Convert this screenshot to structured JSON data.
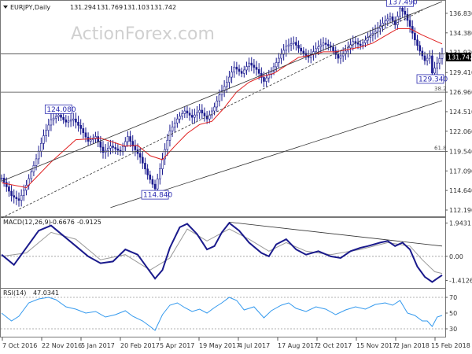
{
  "header": {
    "symbol": "EURJPY,Daily",
    "open": "131.294",
    "high": "131.769",
    "low": "131.103",
    "close": "131.742"
  },
  "watermark": "ActionForex.com",
  "current_price_label": "131.742",
  "colors": {
    "candle": "#1b1b8f",
    "ma": "#e02020",
    "channel": "#333333",
    "macd": "#1a1a8c",
    "signal": "#9a9a9a",
    "rsi": "#3399ee",
    "hline": "#444444",
    "label_border": "#2c2cb0"
  },
  "chart_data": [
    {
      "type": "candlestick",
      "title": "EURJPY,Daily",
      "yticks": [
        "136.830",
        "134.380",
        "131.930",
        "129.410",
        "126.960",
        "124.510",
        "122.060",
        "119.540",
        "117.090",
        "114.640",
        "112.190"
      ],
      "ylim": [
        111.5,
        138.3
      ],
      "xticks": [
        "7 Oct 2016",
        "22 Nov 2016",
        "5 Jan 2017",
        "20 Feb 2017",
        "5 Apr 2017",
        "19 May 2017",
        "4 Jul 2017",
        "17 Aug 2017",
        "2 Oct 2017",
        "15 Nov 2017",
        "2 Jan 2018",
        "15 Feb 2018"
      ],
      "price_path": [
        [
          0,
          116.2
        ],
        [
          8,
          114.0
        ],
        [
          14,
          113.4
        ],
        [
          20,
          115.3
        ],
        [
          28,
          118.6
        ],
        [
          34,
          121.5
        ],
        [
          40,
          123.5
        ],
        [
          46,
          124.1
        ],
        [
          52,
          123.2
        ],
        [
          58,
          123.6
        ],
        [
          64,
          122.4
        ],
        [
          70,
          120.8
        ],
        [
          76,
          121.4
        ],
        [
          82,
          119.4
        ],
        [
          88,
          120.2
        ],
        [
          96,
          119.5
        ],
        [
          102,
          121.4
        ],
        [
          106,
          120.2
        ],
        [
          112,
          118.8
        ],
        [
          118,
          116.6
        ],
        [
          124,
          114.84
        ],
        [
          130,
          118.6
        ],
        [
          136,
          122.1
        ],
        [
          142,
          123.6
        ],
        [
          148,
          124.6
        ],
        [
          154,
          123.8
        ],
        [
          160,
          124.7
        ],
        [
          166,
          123.6
        ],
        [
          172,
          125.1
        ],
        [
          176,
          126.6
        ],
        [
          182,
          128.2
        ],
        [
          188,
          130.1
        ],
        [
          194,
          129.3
        ],
        [
          200,
          130.6
        ],
        [
          206,
          129.8
        ],
        [
          212,
          128.3
        ],
        [
          218,
          129.6
        ],
        [
          224,
          131.2
        ],
        [
          230,
          132.7
        ],
        [
          236,
          133.2
        ],
        [
          242,
          132.1
        ],
        [
          248,
          131.3
        ],
        [
          254,
          132.4
        ],
        [
          260,
          133.1
        ],
        [
          266,
          132.6
        ],
        [
          272,
          131.2
        ],
        [
          278,
          132.1
        ],
        [
          284,
          133.3
        ],
        [
          290,
          132.8
        ],
        [
          296,
          133.8
        ],
        [
          302,
          134.6
        ],
        [
          308,
          135.6
        ],
        [
          314,
          136.4
        ],
        [
          318,
          135.4
        ],
        [
          322,
          137.49
        ],
        [
          326,
          136.7
        ],
        [
          330,
          135.2
        ],
        [
          334,
          133.5
        ],
        [
          338,
          132.1
        ],
        [
          342,
          130.9
        ],
        [
          346,
          131.5
        ],
        [
          348,
          129.34
        ],
        [
          352,
          130.6
        ],
        [
          356,
          131.742
        ]
      ],
      "ma_path": [
        [
          0,
          115.6
        ],
        [
          20,
          115.0
        ],
        [
          40,
          118.2
        ],
        [
          60,
          121.0
        ],
        [
          80,
          121.2
        ],
        [
          100,
          120.2
        ],
        [
          110,
          120.3
        ],
        [
          120,
          119.0
        ],
        [
          130,
          118.5
        ],
        [
          140,
          120.2
        ],
        [
          150,
          121.8
        ],
        [
          160,
          122.9
        ],
        [
          170,
          123.3
        ],
        [
          180,
          125.0
        ],
        [
          190,
          127.0
        ],
        [
          200,
          128.2
        ],
        [
          210,
          128.9
        ],
        [
          220,
          129.3
        ],
        [
          230,
          130.3
        ],
        [
          240,
          131.3
        ],
        [
          250,
          131.6
        ],
        [
          260,
          132.0
        ],
        [
          270,
          132.0
        ],
        [
          280,
          132.3
        ],
        [
          290,
          132.6
        ],
        [
          300,
          133.1
        ],
        [
          310,
          134.0
        ],
        [
          320,
          134.9
        ],
        [
          330,
          134.9
        ],
        [
          340,
          134.1
        ],
        [
          356,
          133.0
        ]
      ],
      "annotations": [
        {
          "text": "137.490",
          "x": 322,
          "y": 137.49,
          "position": "above"
        },
        {
          "text": "124.080",
          "x": 46,
          "y": 124.08,
          "position": "above"
        },
        {
          "text": "114.840",
          "x": 124,
          "y": 114.84,
          "position": "below"
        },
        {
          "text": "129.340",
          "x": 348,
          "y": 129.34,
          "position": "below"
        }
      ],
      "horizontal_levels": [
        {
          "value": 131.742,
          "label": ""
        },
        {
          "value": 126.96,
          "label": "38.2"
        },
        {
          "value": 119.54,
          "label": "61.8"
        }
      ],
      "channel": {
        "upper": [
          [
            0,
            115.8
          ],
          [
            356,
            138.3
          ]
        ],
        "lower": [
          [
            88,
            112.5
          ],
          [
            356,
            125.9
          ]
        ],
        "mid": [
          [
            0,
            111.2
          ],
          [
            340,
            137.2
          ]
        ]
      }
    },
    {
      "type": "line",
      "title": "MACD(12,26,9)",
      "header_values": [
        "-0.6676",
        "-0.9125"
      ],
      "yticks": [
        "1.9431",
        "0.00",
        "-1.4126"
      ],
      "ylim": [
        -1.8,
        2.2
      ],
      "macd_path": [
        [
          0,
          0.1
        ],
        [
          10,
          -0.5
        ],
        [
          18,
          0.3
        ],
        [
          30,
          1.5
        ],
        [
          40,
          1.8
        ],
        [
          50,
          1.2
        ],
        [
          60,
          0.6
        ],
        [
          70,
          0.0
        ],
        [
          80,
          -0.4
        ],
        [
          90,
          -0.3
        ],
        [
          100,
          0.4
        ],
        [
          110,
          0.1
        ],
        [
          118,
          -0.7
        ],
        [
          124,
          -1.3
        ],
        [
          130,
          -0.8
        ],
        [
          136,
          0.5
        ],
        [
          144,
          1.7
        ],
        [
          150,
          1.9
        ],
        [
          158,
          1.3
        ],
        [
          166,
          0.4
        ],
        [
          172,
          0.6
        ],
        [
          178,
          1.4
        ],
        [
          184,
          1.95
        ],
        [
          192,
          1.5
        ],
        [
          200,
          0.8
        ],
        [
          210,
          0.2
        ],
        [
          216,
          0.0
        ],
        [
          222,
          0.7
        ],
        [
          230,
          1.0
        ],
        [
          238,
          0.4
        ],
        [
          246,
          0.1
        ],
        [
          256,
          0.3
        ],
        [
          266,
          0.0
        ],
        [
          274,
          -0.1
        ],
        [
          282,
          0.3
        ],
        [
          290,
          0.5
        ],
        [
          296,
          0.6
        ],
        [
          306,
          0.8
        ],
        [
          312,
          0.9
        ],
        [
          318,
          0.6
        ],
        [
          324,
          0.8
        ],
        [
          330,
          0.4
        ],
        [
          336,
          -0.6
        ],
        [
          342,
          -1.2
        ],
        [
          348,
          -1.5
        ],
        [
          352,
          -1.3
        ],
        [
          356,
          -1.1
        ]
      ],
      "signal_path": [
        [
          0,
          0.0
        ],
        [
          20,
          0.2
        ],
        [
          40,
          1.4
        ],
        [
          60,
          1.0
        ],
        [
          80,
          -0.2
        ],
        [
          100,
          0.1
        ],
        [
          120,
          -0.8
        ],
        [
          136,
          -0.1
        ],
        [
          150,
          1.6
        ],
        [
          166,
          0.9
        ],
        [
          184,
          1.6
        ],
        [
          200,
          1.0
        ],
        [
          216,
          0.3
        ],
        [
          230,
          0.8
        ],
        [
          246,
          0.3
        ],
        [
          266,
          0.1
        ],
        [
          290,
          0.4
        ],
        [
          312,
          0.8
        ],
        [
          330,
          0.6
        ],
        [
          340,
          -0.2
        ],
        [
          350,
          -0.9
        ],
        [
          356,
          -1.0
        ]
      ],
      "trendline": [
        [
          184,
          2.0
        ],
        [
          356,
          0.6
        ]
      ]
    },
    {
      "type": "line",
      "title": "RSI(14)",
      "header_values": [
        "47.0341"
      ],
      "yticks": [
        "70",
        "50",
        "30"
      ],
      "ylim": [
        20,
        80
      ],
      "levels": [
        70,
        30
      ],
      "rsi_path": [
        [
          0,
          50
        ],
        [
          8,
          40
        ],
        [
          14,
          46
        ],
        [
          22,
          63
        ],
        [
          30,
          68
        ],
        [
          38,
          70
        ],
        [
          44,
          67
        ],
        [
          52,
          58
        ],
        [
          60,
          55
        ],
        [
          68,
          50
        ],
        [
          76,
          52
        ],
        [
          84,
          45
        ],
        [
          92,
          48
        ],
        [
          100,
          53
        ],
        [
          106,
          46
        ],
        [
          114,
          40
        ],
        [
          120,
          33
        ],
        [
          124,
          28
        ],
        [
          130,
          48
        ],
        [
          136,
          60
        ],
        [
          142,
          63
        ],
        [
          148,
          57
        ],
        [
          154,
          52
        ],
        [
          160,
          55
        ],
        [
          166,
          50
        ],
        [
          172,
          57
        ],
        [
          178,
          63
        ],
        [
          184,
          70
        ],
        [
          190,
          66
        ],
        [
          196,
          54
        ],
        [
          204,
          58
        ],
        [
          212,
          44
        ],
        [
          218,
          53
        ],
        [
          226,
          60
        ],
        [
          232,
          63
        ],
        [
          238,
          56
        ],
        [
          246,
          52
        ],
        [
          254,
          58
        ],
        [
          262,
          55
        ],
        [
          270,
          48
        ],
        [
          278,
          54
        ],
        [
          286,
          58
        ],
        [
          294,
          55
        ],
        [
          302,
          61
        ],
        [
          310,
          63
        ],
        [
          316,
          60
        ],
        [
          322,
          66
        ],
        [
          328,
          50
        ],
        [
          334,
          47
        ],
        [
          340,
          40
        ],
        [
          344,
          40
        ],
        [
          348,
          33
        ],
        [
          352,
          45
        ],
        [
          356,
          47
        ]
      ]
    }
  ]
}
